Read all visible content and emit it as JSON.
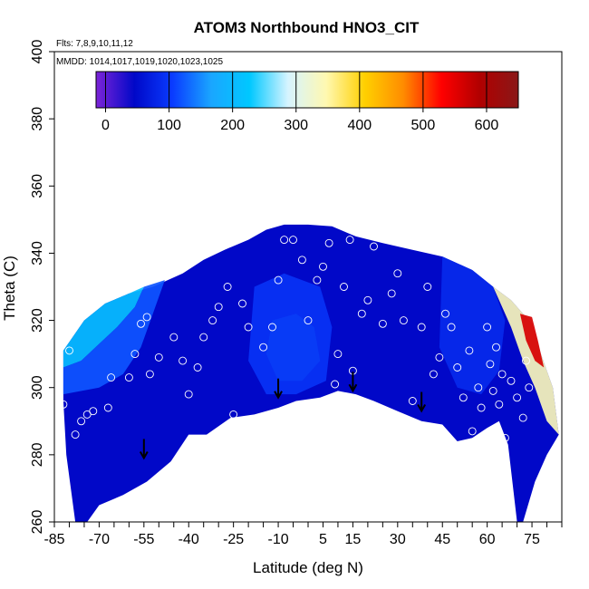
{
  "chart_data": {
    "type": "heatmap",
    "title": "ATOM3 Northbound HNO3_CIT",
    "notes": [
      "Flts: 7,8,9,10,11,12",
      "MMDD: 1014,1017,1019,1020,1023,1025"
    ],
    "xlabel": "Latitude (deg N)",
    "ylabel": "Theta (C)",
    "xlim": [
      -85,
      85
    ],
    "ylim": [
      260,
      400
    ],
    "x_ticks": [
      -85,
      -70,
      -55,
      -40,
      -25,
      -10,
      5,
      15,
      30,
      45,
      60,
      75
    ],
    "y_ticks": [
      260,
      280,
      300,
      320,
      340,
      360,
      380,
      400
    ],
    "colorbar": {
      "ticks": [
        0,
        100,
        200,
        300,
        400,
        500,
        600
      ],
      "range": [
        -15,
        650
      ],
      "colors": [
        "#7c24d8",
        "#0008c8",
        "#0a3cff",
        "#1aa6ff",
        "#00c8ff",
        "#d6f4ff",
        "#fff8b0",
        "#ffd000",
        "#ff8c00",
        "#ff0000",
        "#b00000",
        "#8a1818"
      ]
    },
    "coverage_envelope": {
      "top": [
        [
          -82,
          311
        ],
        [
          -75,
          320
        ],
        [
          -68,
          325
        ],
        [
          -60,
          328
        ],
        [
          -52,
          330
        ],
        [
          -42,
          334
        ],
        [
          -35,
          338
        ],
        [
          -28,
          341
        ],
        [
          -20,
          344
        ],
        [
          -14,
          347
        ],
        [
          -8,
          348.5
        ],
        [
          0,
          348.5
        ],
        [
          8,
          348
        ],
        [
          16,
          345
        ],
        [
          25,
          343
        ],
        [
          35,
          341
        ],
        [
          45,
          339
        ],
        [
          55,
          335
        ],
        [
          62,
          330
        ],
        [
          68,
          326
        ],
        [
          72,
          322
        ],
        [
          75,
          319
        ],
        [
          78,
          310
        ],
        [
          82,
          300
        ],
        [
          84,
          286
        ]
      ],
      "bottom": [
        [
          84,
          286
        ],
        [
          80,
          280
        ],
        [
          76,
          272
        ],
        [
          72,
          260
        ],
        [
          70,
          260
        ],
        [
          67,
          283
        ],
        [
          64,
          290
        ],
        [
          60,
          288
        ],
        [
          55,
          285
        ],
        [
          50,
          284
        ],
        [
          45,
          289
        ],
        [
          38,
          290
        ],
        [
          30,
          293
        ],
        [
          22,
          296
        ],
        [
          16,
          298
        ],
        [
          10,
          299
        ],
        [
          4,
          297
        ],
        [
          -4,
          296
        ],
        [
          -10,
          294
        ],
        [
          -18,
          292
        ],
        [
          -26,
          291
        ],
        [
          -34,
          286
        ],
        [
          -40,
          286
        ],
        [
          -46,
          278
        ],
        [
          -54,
          272
        ],
        [
          -62,
          268
        ],
        [
          -70,
          265
        ],
        [
          -74,
          260
        ],
        [
          -78,
          260
        ],
        [
          -81,
          280
        ],
        [
          -82,
          296
        ],
        [
          -82,
          311
        ]
      ]
    },
    "field_regions": [
      {
        "label": "high-latitude south layer",
        "value": 210,
        "polygon": [
          [
            -82,
            311
          ],
          [
            -75,
            320
          ],
          [
            -68,
            325
          ],
          [
            -60,
            328
          ],
          [
            -55,
            330
          ],
          [
            -58,
            324
          ],
          [
            -64,
            318
          ],
          [
            -70,
            313
          ],
          [
            -76,
            308
          ],
          [
            -82,
            306
          ]
        ]
      },
      {
        "label": "southern band",
        "value": 120,
        "polygon": [
          [
            -82,
            306
          ],
          [
            -76,
            308
          ],
          [
            -70,
            313
          ],
          [
            -64,
            318
          ],
          [
            -58,
            324
          ],
          [
            -55,
            330
          ],
          [
            -48,
            332
          ],
          [
            -52,
            322
          ],
          [
            -56,
            312
          ],
          [
            -62,
            304
          ],
          [
            -70,
            300
          ],
          [
            -82,
            298
          ]
        ]
      },
      {
        "label": "tropical pocket",
        "value": 170,
        "polygon": [
          [
            -12,
            320
          ],
          [
            -4,
            322
          ],
          [
            2,
            318
          ],
          [
            4,
            308
          ],
          [
            -2,
            302
          ],
          [
            -10,
            302
          ],
          [
            -14,
            310
          ]
        ]
      },
      {
        "label": "tropical surround",
        "value": 95,
        "polygon": [
          [
            -18,
            330
          ],
          [
            -8,
            334
          ],
          [
            4,
            330
          ],
          [
            8,
            318
          ],
          [
            6,
            302
          ],
          [
            -4,
            298
          ],
          [
            -14,
            298
          ],
          [
            -20,
            308
          ]
        ]
      },
      {
        "label": "northern band",
        "value": 85,
        "polygon": [
          [
            45,
            339
          ],
          [
            55,
            335
          ],
          [
            62,
            330
          ],
          [
            66,
            320
          ],
          [
            64,
            305
          ],
          [
            58,
            298
          ],
          [
            50,
            300
          ],
          [
            44,
            312
          ]
        ]
      },
      {
        "label": "arctic edge layer",
        "value": 340,
        "polygon": [
          [
            62,
            330
          ],
          [
            68,
            326
          ],
          [
            72,
            322
          ],
          [
            75,
            319
          ],
          [
            78,
            310
          ],
          [
            82,
            300
          ],
          [
            84,
            286
          ],
          [
            80,
            290
          ],
          [
            76,
            300
          ],
          [
            72,
            308
          ],
          [
            68,
            318
          ],
          [
            64,
            326
          ]
        ]
      },
      {
        "label": "arctic max",
        "value": 560,
        "polygon": [
          [
            71,
            322
          ],
          [
            75,
            321
          ],
          [
            77,
            314
          ],
          [
            79,
            306
          ],
          [
            76,
            308
          ],
          [
            73,
            314
          ]
        ]
      }
    ],
    "markers": [
      [
        -55,
        282
      ],
      [
        -10,
        300
      ],
      [
        15,
        302
      ],
      [
        38,
        296
      ]
    ],
    "observations": [
      [
        -82,
        295
      ],
      [
        -80,
        311
      ],
      [
        -78,
        286
      ],
      [
        -76,
        290
      ],
      [
        -74,
        292
      ],
      [
        -72,
        293
      ],
      [
        -67,
        294
      ],
      [
        -66,
        303
      ],
      [
        -60,
        303
      ],
      [
        -58,
        310
      ],
      [
        -56,
        319
      ],
      [
        -54,
        321
      ],
      [
        -53,
        304
      ],
      [
        -50,
        309
      ],
      [
        -45,
        315
      ],
      [
        -42,
        308
      ],
      [
        -40,
        298
      ],
      [
        -37,
        306
      ],
      [
        -35,
        315
      ],
      [
        -32,
        320
      ],
      [
        -30,
        324
      ],
      [
        -27,
        330
      ],
      [
        -25,
        292
      ],
      [
        -22,
        325
      ],
      [
        -20,
        318
      ],
      [
        -15,
        312
      ],
      [
        -12,
        318
      ],
      [
        -10,
        332
      ],
      [
        -8,
        344
      ],
      [
        -5,
        344
      ],
      [
        -2,
        338
      ],
      [
        0,
        320
      ],
      [
        3,
        332
      ],
      [
        5,
        336
      ],
      [
        7,
        343
      ],
      [
        9,
        301
      ],
      [
        10,
        310
      ],
      [
        12,
        330
      ],
      [
        14,
        344
      ],
      [
        15,
        305
      ],
      [
        18,
        322
      ],
      [
        20,
        326
      ],
      [
        22,
        342
      ],
      [
        25,
        319
      ],
      [
        28,
        328
      ],
      [
        30,
        334
      ],
      [
        32,
        320
      ],
      [
        35,
        296
      ],
      [
        38,
        318
      ],
      [
        40,
        330
      ],
      [
        42,
        304
      ],
      [
        44,
        309
      ],
      [
        46,
        322
      ],
      [
        48,
        318
      ],
      [
        50,
        306
      ],
      [
        52,
        297
      ],
      [
        54,
        311
      ],
      [
        55,
        287
      ],
      [
        57,
        300
      ],
      [
        58,
        294
      ],
      [
        60,
        318
      ],
      [
        61,
        307
      ],
      [
        62,
        299
      ],
      [
        63,
        312
      ],
      [
        64,
        295
      ],
      [
        65,
        304
      ],
      [
        66,
        285
      ],
      [
        68,
        302
      ],
      [
        70,
        297
      ],
      [
        72,
        291
      ],
      [
        73,
        308
      ],
      [
        74,
        300
      ]
    ]
  }
}
